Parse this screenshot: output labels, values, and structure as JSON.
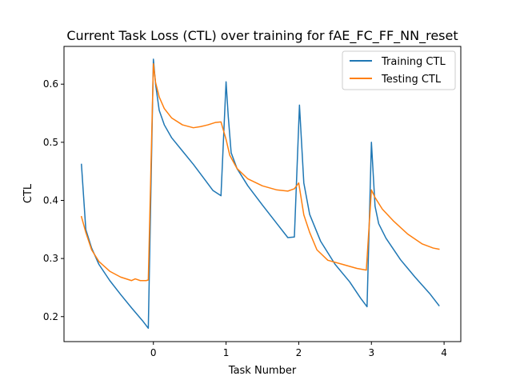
{
  "chart_data": {
    "type": "line",
    "title": "Current Task Loss (CTL) over training for fAE_FC_FF_NN_reset",
    "xlabel": "Task Number",
    "ylabel": "CTL",
    "xlim": [
      -1.23,
      4.23
    ],
    "ylim": [
      0.157,
      0.665
    ],
    "xticks": [
      0,
      1,
      2,
      3,
      4
    ],
    "yticks": [
      0.2,
      0.3,
      0.4,
      0.5,
      0.6
    ],
    "grid": false,
    "legend_position": "top-right",
    "series": [
      {
        "name": "Training CTL",
        "color": "#1f77b4",
        "x": [
          -0.99,
          -0.93,
          -0.85,
          -0.75,
          -0.6,
          -0.45,
          -0.3,
          -0.15,
          -0.07,
          0.0,
          0.03,
          0.08,
          0.15,
          0.25,
          0.4,
          0.55,
          0.7,
          0.82,
          0.93,
          1.0,
          1.03,
          1.07,
          1.15,
          1.3,
          1.5,
          1.7,
          1.85,
          1.94,
          2.01,
          2.07,
          2.15,
          2.3,
          2.5,
          2.7,
          2.85,
          2.94,
          3.0,
          3.05,
          3.1,
          3.2,
          3.4,
          3.6,
          3.8,
          3.93
        ],
        "y": [
          0.462,
          0.35,
          0.318,
          0.29,
          0.262,
          0.238,
          0.215,
          0.193,
          0.18,
          0.643,
          0.6,
          0.555,
          0.53,
          0.508,
          0.485,
          0.462,
          0.437,
          0.417,
          0.408,
          0.604,
          0.545,
          0.482,
          0.455,
          0.425,
          0.392,
          0.36,
          0.336,
          0.337,
          0.564,
          0.43,
          0.376,
          0.33,
          0.29,
          0.26,
          0.232,
          0.217,
          0.5,
          0.39,
          0.36,
          0.335,
          0.298,
          0.268,
          0.24,
          0.219
        ]
      },
      {
        "name": "Testing CTL",
        "color": "#ff7f0e",
        "x": [
          -0.99,
          -0.93,
          -0.85,
          -0.75,
          -0.6,
          -0.45,
          -0.3,
          -0.25,
          -0.18,
          -0.1,
          -0.07,
          0.0,
          0.03,
          0.08,
          0.15,
          0.25,
          0.4,
          0.55,
          0.65,
          0.75,
          0.85,
          0.93,
          1.0,
          1.05,
          1.15,
          1.3,
          1.5,
          1.7,
          1.85,
          1.94,
          2.0,
          2.07,
          2.15,
          2.25,
          2.4,
          2.6,
          2.8,
          2.93,
          3.0,
          3.05,
          3.15,
          3.3,
          3.5,
          3.7,
          3.85,
          3.93
        ],
        "y": [
          0.372,
          0.345,
          0.315,
          0.295,
          0.278,
          0.268,
          0.262,
          0.265,
          0.262,
          0.262,
          0.263,
          0.635,
          0.603,
          0.578,
          0.558,
          0.542,
          0.53,
          0.525,
          0.527,
          0.53,
          0.534,
          0.535,
          0.505,
          0.478,
          0.455,
          0.437,
          0.425,
          0.418,
          0.416,
          0.42,
          0.43,
          0.375,
          0.345,
          0.315,
          0.297,
          0.29,
          0.283,
          0.28,
          0.418,
          0.405,
          0.385,
          0.365,
          0.342,
          0.325,
          0.318,
          0.316
        ]
      }
    ]
  }
}
